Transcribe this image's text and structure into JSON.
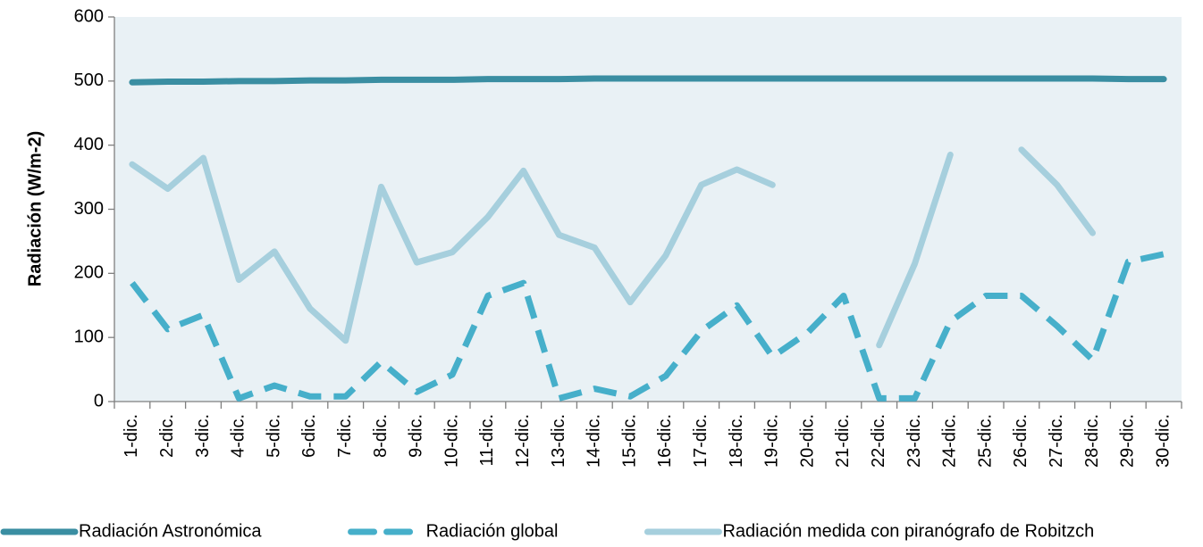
{
  "chart_data": {
    "type": "line",
    "y_label": "Radiación (W/m-2)",
    "categories": [
      "1-dic.",
      "2-dic.",
      "3-dic.",
      "4-dic.",
      "5-dic.",
      "6-dic.",
      "7-dic.",
      "8-dic.",
      "9-dic.",
      "10-dic.",
      "11-dic.",
      "12-dic.",
      "13-dic.",
      "14-dic.",
      "15-dic.",
      "16-dic.",
      "17-dic.",
      "18-dic.",
      "19-dic.",
      "20-dic.",
      "21-dic.",
      "22-dic.",
      "23-dic.",
      "24-dic.",
      "25-dic.",
      "26-dic.",
      "27-dic.",
      "28-dic.",
      "29-dic.",
      "30-dic."
    ],
    "series": [
      {
        "name": "Radiación Astronómica",
        "color": "#3a8ea2",
        "style": "solid",
        "values": [
          498,
          499,
          499,
          500,
          500,
          501,
          501,
          502,
          502,
          502,
          503,
          503,
          503,
          504,
          504,
          504,
          504,
          504,
          504,
          504,
          504,
          504,
          504,
          504,
          504,
          504,
          504,
          504,
          503,
          503
        ]
      },
      {
        "name": "Radiación global",
        "color": "#46afca",
        "style": "dashed",
        "values": [
          185,
          113,
          135,
          5,
          25,
          8,
          8,
          62,
          15,
          42,
          165,
          185,
          5,
          20,
          8,
          40,
          110,
          150,
          70,
          108,
          165,
          5,
          5,
          125,
          165,
          165,
          118,
          65,
          218,
          230
        ]
      },
      {
        "name": "Radiación medida con piranógrafo de Robitzch",
        "color": "#a6cfdd",
        "style": "solid",
        "values": [
          370,
          332,
          380,
          190,
          234,
          145,
          95,
          335,
          217,
          233,
          288,
          360,
          260,
          240,
          155,
          228,
          338,
          362,
          338,
          null,
          null,
          88,
          215,
          385,
          null,
          393,
          338,
          263,
          null,
          null
        ]
      }
    ],
    "ylim": [
      0,
      600
    ],
    "yticks": [
      0,
      100,
      200,
      300,
      400,
      500,
      600
    ],
    "grid": false,
    "legend": "bottom"
  }
}
